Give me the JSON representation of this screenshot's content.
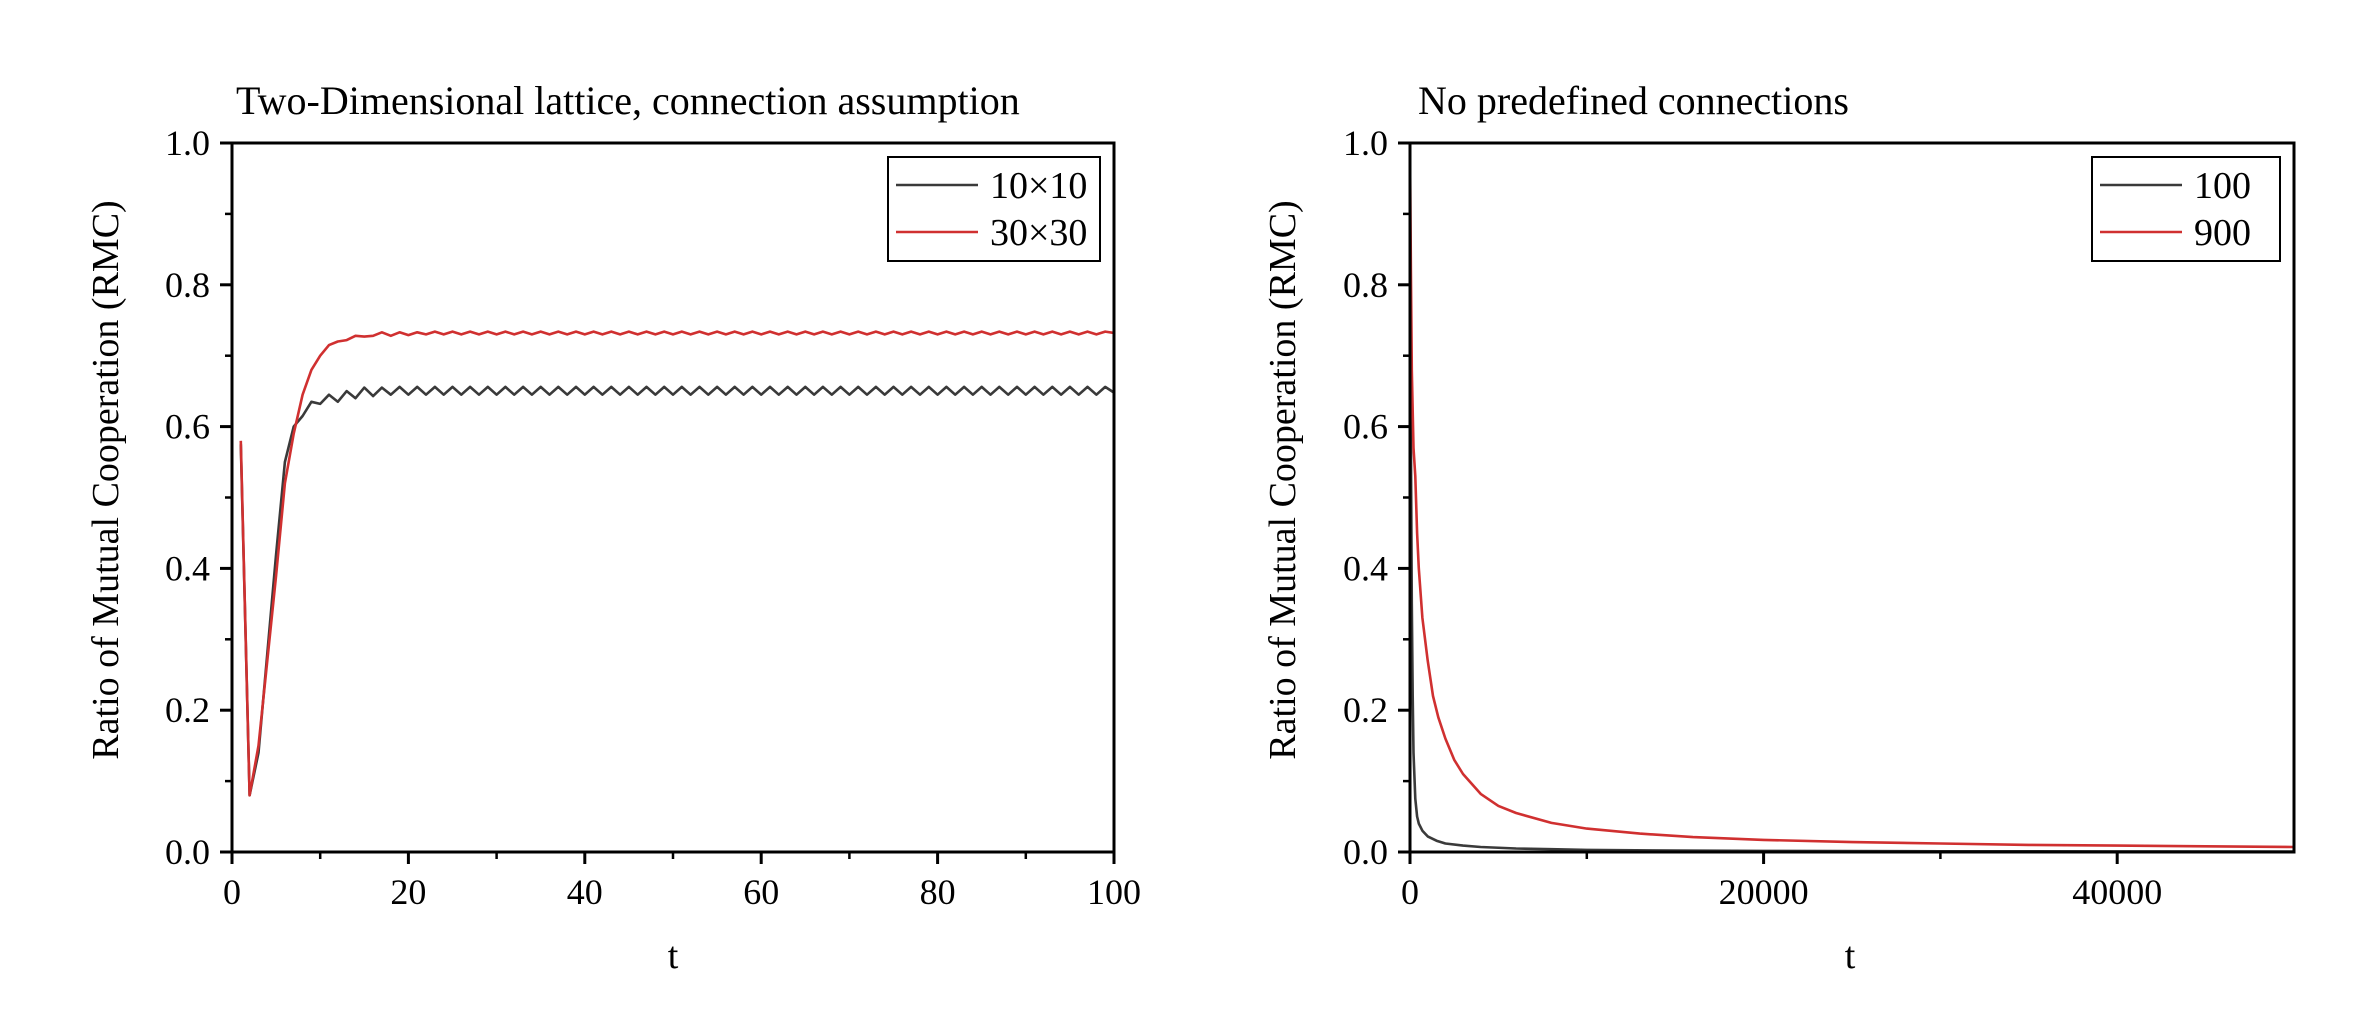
{
  "chart_data": [
    {
      "type": "line",
      "title": "Two-Dimensional lattice, connection assumption",
      "xlabel": "t",
      "ylabel": "Ratio of Mutual Cooperation (RMC)",
      "xlim": [
        0,
        100
      ],
      "ylim": [
        0.0,
        1.0
      ],
      "xticks": [
        0,
        20,
        40,
        60,
        80,
        100
      ],
      "xtick_labels": [
        "0",
        "20",
        "40",
        "60",
        "80",
        "100"
      ],
      "yticks": [
        0.0,
        0.2,
        0.4,
        0.6,
        0.8,
        1.0
      ],
      "ytick_labels": [
        "0.0",
        "0.2",
        "0.4",
        "0.6",
        "0.8",
        "1.0"
      ],
      "grid": false,
      "legend_position": "top-right",
      "series": [
        {
          "name": "10×10",
          "color": "#3a3a3a",
          "x": [
            1,
            2,
            3,
            4,
            5,
            6,
            7,
            8,
            9,
            10,
            11,
            12,
            13,
            14,
            15,
            16,
            17,
            18,
            19,
            20,
            21,
            22,
            23,
            24,
            25,
            26,
            27,
            28,
            29,
            30,
            31,
            32,
            33,
            34,
            35,
            36,
            37,
            38,
            39,
            40,
            41,
            42,
            43,
            44,
            45,
            46,
            47,
            48,
            49,
            50,
            51,
            52,
            53,
            54,
            55,
            56,
            57,
            58,
            59,
            60,
            61,
            62,
            63,
            64,
            65,
            66,
            67,
            68,
            69,
            70,
            71,
            72,
            73,
            74,
            75,
            76,
            77,
            78,
            79,
            80,
            81,
            82,
            83,
            84,
            85,
            86,
            87,
            88,
            89,
            90,
            91,
            92,
            93,
            94,
            95,
            96,
            97,
            98,
            99,
            100
          ],
          "y": [
            0.575,
            0.08,
            0.14,
            0.28,
            0.42,
            0.55,
            0.6,
            0.615,
            0.635,
            0.632,
            0.645,
            0.635,
            0.65,
            0.64,
            0.655,
            0.643,
            0.655,
            0.645,
            0.656,
            0.645,
            0.656,
            0.645,
            0.656,
            0.645,
            0.656,
            0.645,
            0.656,
            0.645,
            0.656,
            0.645,
            0.656,
            0.645,
            0.656,
            0.645,
            0.656,
            0.645,
            0.656,
            0.645,
            0.656,
            0.645,
            0.656,
            0.645,
            0.656,
            0.645,
            0.656,
            0.645,
            0.656,
            0.645,
            0.656,
            0.645,
            0.656,
            0.645,
            0.656,
            0.645,
            0.656,
            0.645,
            0.656,
            0.645,
            0.656,
            0.645,
            0.656,
            0.645,
            0.656,
            0.645,
            0.656,
            0.645,
            0.656,
            0.645,
            0.656,
            0.645,
            0.656,
            0.645,
            0.656,
            0.645,
            0.656,
            0.645,
            0.656,
            0.645,
            0.656,
            0.645,
            0.656,
            0.645,
            0.656,
            0.645,
            0.656,
            0.645,
            0.656,
            0.645,
            0.656,
            0.645,
            0.656,
            0.645,
            0.656,
            0.645,
            0.656,
            0.645,
            0.656,
            0.645,
            0.656,
            0.648
          ]
        },
        {
          "name": "30×30",
          "color": "#d03030",
          "x": [
            1,
            2,
            3,
            4,
            5,
            6,
            7,
            8,
            9,
            10,
            11,
            12,
            13,
            14,
            15,
            16,
            17,
            18,
            19,
            20,
            21,
            22,
            23,
            24,
            25,
            26,
            27,
            28,
            29,
            30,
            31,
            32,
            33,
            34,
            35,
            36,
            37,
            38,
            39,
            40,
            41,
            42,
            43,
            44,
            45,
            46,
            47,
            48,
            49,
            50,
            51,
            52,
            53,
            54,
            55,
            56,
            57,
            58,
            59,
            60,
            61,
            62,
            63,
            64,
            65,
            66,
            67,
            68,
            69,
            70,
            71,
            72,
            73,
            74,
            75,
            76,
            77,
            78,
            79,
            80,
            81,
            82,
            83,
            84,
            85,
            86,
            87,
            88,
            89,
            90,
            91,
            92,
            93,
            94,
            95,
            96,
            97,
            98,
            99,
            100
          ],
          "y": [
            0.58,
            0.08,
            0.15,
            0.27,
            0.39,
            0.52,
            0.59,
            0.645,
            0.68,
            0.7,
            0.715,
            0.72,
            0.722,
            0.728,
            0.727,
            0.728,
            0.733,
            0.728,
            0.733,
            0.729,
            0.733,
            0.73,
            0.734,
            0.73,
            0.734,
            0.73,
            0.734,
            0.73,
            0.734,
            0.73,
            0.734,
            0.73,
            0.734,
            0.73,
            0.734,
            0.73,
            0.734,
            0.73,
            0.734,
            0.73,
            0.734,
            0.73,
            0.734,
            0.73,
            0.734,
            0.73,
            0.734,
            0.73,
            0.734,
            0.73,
            0.734,
            0.73,
            0.734,
            0.73,
            0.734,
            0.73,
            0.734,
            0.73,
            0.734,
            0.73,
            0.734,
            0.73,
            0.734,
            0.73,
            0.734,
            0.73,
            0.734,
            0.73,
            0.734,
            0.73,
            0.734,
            0.73,
            0.734,
            0.73,
            0.734,
            0.73,
            0.734,
            0.73,
            0.734,
            0.73,
            0.734,
            0.73,
            0.734,
            0.73,
            0.734,
            0.73,
            0.734,
            0.73,
            0.734,
            0.73,
            0.734,
            0.73,
            0.734,
            0.73,
            0.734,
            0.73,
            0.734,
            0.73,
            0.734,
            0.732
          ]
        }
      ]
    },
    {
      "type": "line",
      "title": "No predefined connections",
      "xlabel": "t",
      "ylabel": "Ratio of Mutual Cooperation (RMC)",
      "xlim": [
        0,
        50000
      ],
      "ylim": [
        0.0,
        1.0
      ],
      "xticks": [
        0,
        20000,
        40000
      ],
      "xtick_labels": [
        "0",
        "20000",
        "40000"
      ],
      "yticks": [
        0.0,
        0.2,
        0.4,
        0.6,
        0.8,
        1.0
      ],
      "ytick_labels": [
        "0.0",
        "0.2",
        "0.4",
        "0.6",
        "0.8",
        "1.0"
      ],
      "grid": false,
      "legend_position": "top-right",
      "series": [
        {
          "name": "100",
          "color": "#3a3a3a",
          "x": [
            1,
            50,
            100,
            150,
            200,
            300,
            400,
            500,
            700,
            1000,
            1500,
            2000,
            3000,
            4000,
            6000,
            8000,
            10000,
            15000,
            20000,
            30000,
            40000,
            50000
          ],
          "y": [
            0.99,
            0.58,
            0.35,
            0.22,
            0.14,
            0.075,
            0.05,
            0.04,
            0.03,
            0.022,
            0.016,
            0.012,
            0.009,
            0.007,
            0.005,
            0.004,
            0.003,
            0.002,
            0.0015,
            0.001,
            0.0008,
            0.0006
          ]
        },
        {
          "name": "900",
          "color": "#d03030",
          "x": [
            1,
            50,
            100,
            200,
            300,
            400,
            500,
            700,
            1000,
            1300,
            1600,
            2000,
            2500,
            3000,
            4000,
            5000,
            6000,
            8000,
            10000,
            13000,
            16000,
            20000,
            25000,
            30000,
            35000,
            40000,
            45000,
            50000
          ],
          "y": [
            0.99,
            0.82,
            0.68,
            0.57,
            0.53,
            0.45,
            0.4,
            0.33,
            0.27,
            0.22,
            0.19,
            0.16,
            0.13,
            0.11,
            0.082,
            0.065,
            0.055,
            0.041,
            0.033,
            0.026,
            0.021,
            0.017,
            0.014,
            0.012,
            0.01,
            0.009,
            0.008,
            0.007
          ]
        }
      ]
    }
  ]
}
